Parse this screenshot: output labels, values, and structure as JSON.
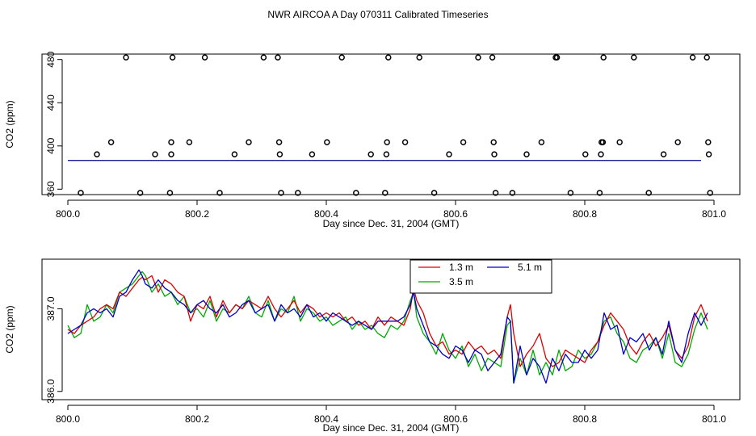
{
  "title": "NWR AIRCOA A  Day 070311  Calibrated Timeseries",
  "chart_data": [
    {
      "type": "scatter",
      "xlabel": "Day since Dec. 31, 2004 (GMT)",
      "ylabel": "CO2 (ppm)",
      "xlim": [
        800.0,
        801.0
      ],
      "ylim": [
        355,
        485
      ],
      "xticks": [
        "800.0",
        "800.2",
        "800.4",
        "800.6",
        "800.8",
        "801.0"
      ],
      "xtick_values": [
        800.0,
        800.2,
        800.4,
        800.6,
        800.8,
        801.0
      ],
      "yticks": [
        "360",
        "400",
        "440",
        "480"
      ],
      "ytick_values": [
        360,
        400,
        440,
        480
      ],
      "grid": false,
      "series": [
        {
          "color": "#000000",
          "marker": "open-circle",
          "points": [
            [
              800.02,
              356.6
            ],
            [
              800.045,
              392.3
            ],
            [
              800.067,
              403.5
            ],
            [
              800.09,
              481.9
            ],
            [
              800.112,
              356.6
            ],
            [
              800.135,
              392.3
            ],
            [
              800.158,
              356.6
            ],
            [
              800.16,
              392.3
            ],
            [
              800.16,
              403.5
            ],
            [
              800.162,
              481.9
            ],
            [
              800.188,
              403.5
            ],
            [
              800.212,
              481.9
            ],
            [
              800.235,
              356.6
            ],
            [
              800.258,
              392.3
            ],
            [
              800.28,
              403.5
            ],
            [
              800.303,
              481.9
            ],
            [
              800.325,
              481.9
            ],
            [
              800.327,
              403.5
            ],
            [
              800.328,
              392.3
            ],
            [
              800.33,
              356.6
            ],
            [
              800.356,
              356.6
            ],
            [
              800.378,
              392.3
            ],
            [
              800.401,
              403.5
            ],
            [
              800.424,
              481.9
            ],
            [
              800.446,
              356.6
            ],
            [
              800.469,
              392.3
            ],
            [
              800.491,
              356.6
            ],
            [
              800.493,
              392.3
            ],
            [
              800.494,
              403.5
            ],
            [
              800.496,
              481.9
            ],
            [
              800.522,
              403.5
            ],
            [
              800.544,
              481.9
            ],
            [
              800.567,
              356.6
            ],
            [
              800.59,
              392.3
            ],
            [
              800.612,
              403.5
            ],
            [
              800.635,
              481.9
            ],
            [
              800.657,
              481.9
            ],
            [
              800.659,
              403.5
            ],
            [
              800.66,
              392.3
            ],
            [
              800.662,
              356.6
            ],
            [
              800.688,
              356.6
            ],
            [
              800.71,
              392.3
            ],
            [
              800.733,
              403.5
            ],
            [
              800.755,
              481.9
            ],
            [
              800.757,
              481.9
            ],
            [
              800.778,
              356.6
            ],
            [
              800.801,
              392.3
            ],
            [
              800.823,
              356.6
            ],
            [
              800.825,
              392.3
            ],
            [
              800.826,
              403.5
            ],
            [
              800.828,
              403.5
            ],
            [
              800.829,
              481.9
            ],
            [
              800.854,
              403.5
            ],
            [
              800.876,
              481.9
            ],
            [
              800.899,
              356.6
            ],
            [
              800.922,
              392.3
            ],
            [
              800.944,
              403.5
            ],
            [
              800.967,
              481.9
            ],
            [
              800.989,
              481.9
            ],
            [
              800.991,
              403.5
            ],
            [
              800.992,
              392.3
            ],
            [
              800.994,
              356.6
            ]
          ]
        },
        {
          "color": "#dd0000",
          "flat": [
            [
              800.0,
              386.7
            ],
            [
              800.98,
              386.7
            ]
          ]
        },
        {
          "color": "#00aa00",
          "flat": [
            [
              800.0,
              386.5
            ],
            [
              800.98,
              386.5
            ]
          ]
        },
        {
          "color": "#0000cc",
          "flat": [
            [
              800.0,
              386.6
            ],
            [
              800.98,
              386.6
            ]
          ]
        }
      ]
    },
    {
      "type": "line",
      "xlabel": "Day since Dec. 31, 2004 (GMT)",
      "ylabel": "CO2 (ppm)",
      "xlim": [
        800.0,
        801.0
      ],
      "ylim": [
        385.9,
        387.6
      ],
      "xticks": [
        "800.0",
        "800.2",
        "800.4",
        "800.6",
        "800.8",
        "801.0"
      ],
      "xtick_values": [
        800.0,
        800.2,
        800.4,
        800.6,
        800.8,
        801.0
      ],
      "yticks": [
        "386.0",
        "387.0"
      ],
      "ytick_values": [
        386.0,
        387.0
      ],
      "grid": false,
      "legend_position": "top-center",
      "series": [
        {
          "name": "1.3 m",
          "color": "#dd0000",
          "x": [
            800.0,
            800.01,
            800.02,
            800.03,
            800.04,
            800.05,
            800.06,
            800.07,
            800.08,
            800.09,
            800.1,
            800.11,
            800.115,
            800.12,
            800.13,
            800.14,
            800.15,
            800.16,
            800.17,
            800.18,
            800.19,
            800.2,
            800.21,
            800.22,
            800.23,
            800.24,
            800.25,
            800.26,
            800.27,
            800.28,
            800.29,
            800.3,
            800.31,
            800.32,
            800.33,
            800.34,
            800.35,
            800.36,
            800.37,
            800.38,
            800.39,
            800.4,
            800.41,
            800.42,
            800.43,
            800.44,
            800.45,
            800.46,
            800.47,
            800.48,
            800.49,
            800.5,
            800.51,
            800.52,
            800.53,
            800.535,
            800.54,
            800.55,
            800.56,
            800.57,
            800.58,
            800.59,
            800.6,
            800.61,
            800.62,
            800.63,
            800.64,
            800.65,
            800.66,
            800.67,
            800.68,
            800.685,
            800.69,
            800.7,
            800.71,
            800.72,
            800.73,
            800.74,
            800.75,
            800.76,
            800.77,
            800.78,
            800.79,
            800.8,
            800.81,
            800.82,
            800.83,
            800.84,
            800.85,
            800.86,
            800.87,
            800.88,
            800.89,
            800.9,
            800.91,
            800.92,
            800.93,
            800.94,
            800.95,
            800.96,
            800.97,
            800.98,
            800.99
          ],
          "values": [
            386.75,
            386.7,
            386.8,
            386.85,
            386.9,
            387.0,
            387.05,
            387.0,
            387.2,
            387.15,
            387.25,
            387.35,
            387.38,
            387.35,
            387.4,
            387.2,
            387.35,
            387.3,
            387.2,
            387.15,
            386.85,
            387.05,
            387.0,
            387.15,
            386.9,
            387.1,
            386.95,
            387.05,
            387.0,
            387.1,
            387.05,
            387.0,
            387.15,
            387.0,
            386.9,
            387.0,
            387.1,
            386.95,
            387.05,
            387.0,
            386.9,
            386.95,
            386.9,
            386.95,
            386.85,
            386.9,
            386.8,
            386.85,
            386.75,
            386.9,
            386.8,
            386.9,
            386.85,
            386.8,
            387.0,
            387.25,
            387.1,
            386.95,
            386.7,
            386.55,
            386.6,
            386.45,
            386.5,
            386.45,
            386.6,
            386.5,
            386.55,
            386.45,
            386.5,
            386.4,
            386.9,
            387.05,
            386.7,
            386.3,
            386.45,
            386.55,
            386.7,
            386.4,
            386.3,
            386.35,
            386.5,
            386.45,
            386.4,
            386.35,
            386.5,
            386.6,
            386.8,
            386.95,
            386.85,
            386.75,
            386.55,
            386.45,
            386.6,
            386.7,
            386.55,
            386.65,
            386.8,
            386.5,
            386.4,
            386.55,
            386.9,
            387.05,
            386.85
          ]
        },
        {
          "name": "3.5 m",
          "color": "#00aa00",
          "x": [
            800.0,
            800.01,
            800.02,
            800.03,
            800.04,
            800.05,
            800.06,
            800.07,
            800.08,
            800.09,
            800.1,
            800.11,
            800.115,
            800.12,
            800.13,
            800.14,
            800.15,
            800.16,
            800.17,
            800.18,
            800.19,
            800.2,
            800.21,
            800.22,
            800.23,
            800.24,
            800.25,
            800.26,
            800.27,
            800.28,
            800.29,
            800.3,
            800.31,
            800.32,
            800.33,
            800.34,
            800.35,
            800.36,
            800.37,
            800.38,
            800.39,
            800.4,
            800.41,
            800.42,
            800.43,
            800.44,
            800.45,
            800.46,
            800.47,
            800.48,
            800.49,
            800.5,
            800.51,
            800.52,
            800.53,
            800.535,
            800.54,
            800.55,
            800.56,
            800.57,
            800.58,
            800.59,
            800.6,
            800.61,
            800.62,
            800.63,
            800.64,
            800.65,
            800.66,
            800.67,
            800.68,
            800.685,
            800.69,
            800.7,
            800.71,
            800.72,
            800.73,
            800.74,
            800.75,
            800.76,
            800.77,
            800.78,
            800.79,
            800.8,
            800.81,
            800.82,
            800.83,
            800.84,
            800.85,
            800.86,
            800.87,
            800.88,
            800.89,
            800.9,
            800.91,
            800.92,
            800.93,
            800.94,
            800.95,
            800.96,
            800.97,
            800.98,
            800.99
          ],
          "values": [
            386.8,
            386.65,
            386.7,
            387.05,
            386.85,
            386.9,
            387.05,
            386.95,
            387.2,
            387.25,
            387.3,
            387.4,
            387.45,
            387.4,
            387.2,
            387.3,
            387.15,
            387.2,
            387.05,
            387.15,
            386.95,
            387.0,
            386.9,
            387.1,
            386.85,
            387.0,
            386.95,
            387.05,
            387.0,
            387.15,
            386.95,
            386.9,
            387.1,
            386.85,
            387.0,
            386.95,
            387.15,
            386.85,
            387.0,
            386.95,
            386.85,
            386.9,
            386.8,
            386.85,
            386.9,
            386.75,
            386.85,
            386.75,
            386.8,
            386.7,
            386.65,
            386.8,
            386.75,
            386.85,
            387.1,
            387.2,
            386.9,
            386.7,
            386.6,
            386.45,
            386.7,
            386.5,
            386.4,
            386.55,
            386.3,
            386.45,
            386.25,
            386.4,
            386.35,
            386.3,
            386.8,
            386.85,
            386.1,
            386.4,
            386.2,
            386.5,
            386.2,
            386.35,
            386.2,
            386.5,
            386.25,
            386.3,
            386.5,
            386.4,
            386.45,
            386.6,
            386.85,
            386.9,
            386.7,
            386.6,
            386.4,
            386.35,
            386.5,
            386.55,
            386.65,
            386.4,
            386.7,
            386.35,
            386.3,
            386.45,
            386.75,
            386.95,
            386.75
          ]
        },
        {
          "name": "5.1 m",
          "color": "#0000cc",
          "x": [
            800.0,
            800.01,
            800.02,
            800.03,
            800.04,
            800.05,
            800.06,
            800.07,
            800.08,
            800.09,
            800.1,
            800.11,
            800.115,
            800.12,
            800.13,
            800.14,
            800.15,
            800.16,
            800.17,
            800.18,
            800.19,
            800.2,
            800.21,
            800.22,
            800.23,
            800.24,
            800.25,
            800.26,
            800.27,
            800.28,
            800.29,
            800.3,
            800.31,
            800.32,
            800.33,
            800.34,
            800.35,
            800.36,
            800.37,
            800.38,
            800.39,
            800.4,
            800.41,
            800.42,
            800.43,
            800.44,
            800.45,
            800.46,
            800.47,
            800.48,
            800.49,
            800.5,
            800.51,
            800.52,
            800.53,
            800.535,
            800.54,
            800.55,
            800.56,
            800.57,
            800.58,
            800.59,
            800.6,
            800.61,
            800.62,
            800.63,
            800.64,
            800.65,
            800.66,
            800.67,
            800.68,
            800.685,
            800.69,
            800.7,
            800.71,
            800.72,
            800.73,
            800.74,
            800.75,
            800.76,
            800.77,
            800.78,
            800.79,
            800.8,
            800.81,
            800.82,
            800.83,
            800.84,
            800.85,
            800.86,
            800.87,
            800.88,
            800.89,
            800.9,
            800.91,
            800.92,
            800.93,
            800.94,
            800.95,
            800.96,
            800.97,
            800.98,
            800.99
          ],
          "values": [
            386.7,
            386.75,
            386.8,
            386.95,
            387.0,
            386.95,
            387.0,
            386.9,
            387.15,
            387.2,
            387.35,
            387.47,
            387.4,
            387.3,
            387.25,
            387.35,
            387.25,
            387.2,
            387.1,
            387.05,
            386.95,
            387.05,
            387.1,
            387.0,
            386.95,
            387.05,
            386.9,
            386.95,
            387.05,
            387.1,
            386.95,
            387.0,
            387.05,
            386.85,
            387.05,
            386.95,
            387.0,
            386.9,
            387.05,
            386.9,
            386.95,
            386.85,
            386.95,
            386.9,
            386.85,
            386.8,
            386.85,
            386.8,
            386.75,
            386.85,
            386.85,
            386.85,
            386.85,
            386.9,
            387.05,
            387.2,
            387.0,
            386.8,
            386.6,
            386.55,
            386.45,
            386.4,
            386.55,
            386.5,
            386.35,
            386.5,
            386.45,
            386.25,
            386.35,
            386.45,
            386.9,
            386.85,
            386.1,
            386.55,
            386.2,
            386.4,
            386.3,
            386.1,
            386.4,
            386.25,
            386.45,
            386.35,
            386.35,
            386.5,
            386.4,
            386.5,
            386.95,
            386.75,
            386.8,
            386.45,
            386.65,
            386.6,
            386.7,
            386.5,
            386.65,
            386.45,
            386.85,
            386.5,
            386.35,
            386.7,
            386.95,
            386.8,
            386.95
          ]
        }
      ]
    }
  ]
}
